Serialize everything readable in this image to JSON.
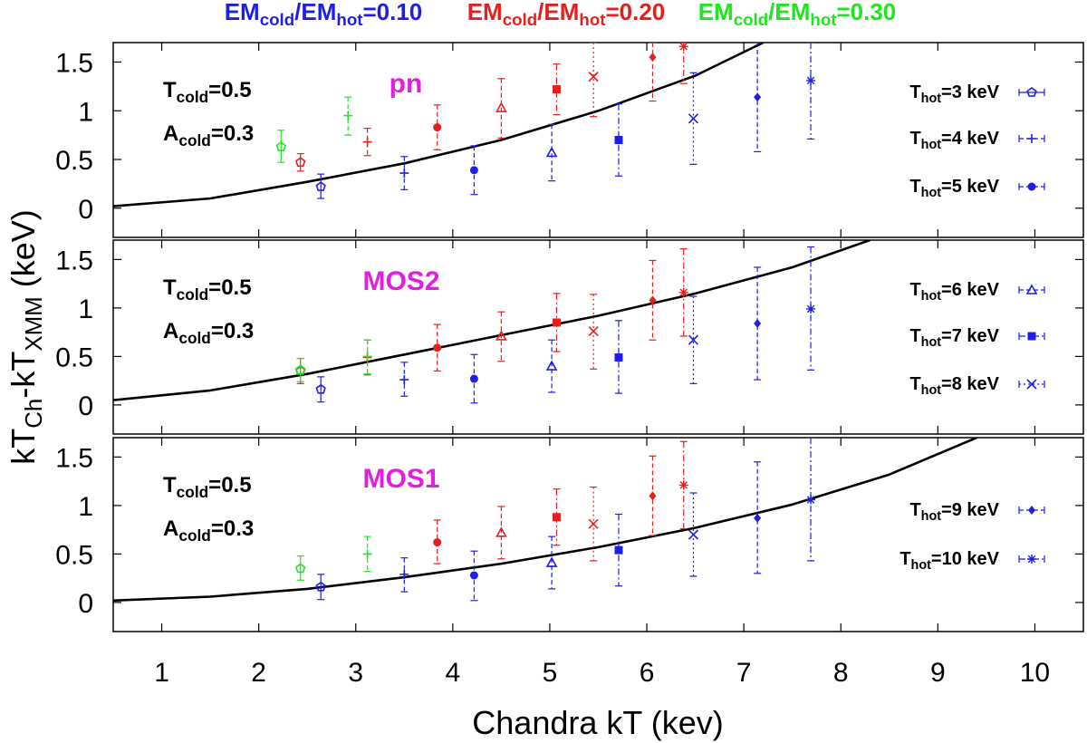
{
  "chart_data": {
    "type": "scatter",
    "xlabel": "Chandra kT (kev)",
    "ylabel": "kT_Ch-kT_XMM (keV)",
    "ylabel_parts": {
      "k1": "kT",
      "s1": "Ch",
      "mid": "-kT",
      "s2": "XMM",
      "tail": " (keV)"
    },
    "xlim": [
      0.5,
      10.5
    ],
    "ylim": [
      -0.3,
      1.7
    ],
    "x_ticks": [
      1,
      2,
      3,
      4,
      5,
      6,
      7,
      8,
      9,
      10
    ],
    "y_ticks": [
      0,
      0.5,
      1,
      1.5
    ],
    "top_legend": [
      {
        "base": "EM",
        "cold": "cold",
        "slash": "/EM",
        "hot": "hot",
        "eq": "=0.10",
        "color": "#1e1ee6"
      },
      {
        "base": "EM",
        "cold": "cold",
        "slash": "/EM",
        "hot": "hot",
        "eq": "=0.20",
        "color": "#e61e1e"
      },
      {
        "base": "EM",
        "cold": "cold",
        "slash": "/EM",
        "hot": "hot",
        "eq": "=0.30",
        "color": "#1ee61e"
      }
    ],
    "annotations": {
      "tcold": {
        "base": "T",
        "sub": "cold",
        "eq": "=0.5"
      },
      "acold": {
        "base": "A",
        "sub": "cold",
        "eq": "=0.3"
      }
    },
    "legend_entries": [
      {
        "base": "T",
        "sub": "hot",
        "eq": "=3 keV",
        "marker": "pentagon-open",
        "style": "solid"
      },
      {
        "base": "T",
        "sub": "hot",
        "eq": "=4 keV",
        "marker": "plus",
        "style": "dash"
      },
      {
        "base": "T",
        "sub": "hot",
        "eq": "=5 keV",
        "marker": "circle",
        "style": "dash"
      },
      {
        "base": "T",
        "sub": "hot",
        "eq": "=6 keV",
        "marker": "triangle-open",
        "style": "dash"
      },
      {
        "base": "T",
        "sub": "hot",
        "eq": "=7 keV",
        "marker": "square",
        "style": "dashdot"
      },
      {
        "base": "T",
        "sub": "hot",
        "eq": "=8 keV",
        "marker": "cross",
        "style": "dot"
      },
      {
        "base": "T",
        "sub": "hot",
        "eq": "=9 keV",
        "marker": "diamond",
        "style": "dash"
      },
      {
        "base": "T",
        "sub": "hot",
        "eq": "=10 keV",
        "marker": "star",
        "style": "dashdot"
      }
    ],
    "marker_order": [
      "pentagon-open",
      "plus",
      "circle",
      "triangle-open",
      "square",
      "cross",
      "diamond",
      "star"
    ],
    "colors": {
      "0.10": "#1e1ee6",
      "0.20": "#e61e1e",
      "0.30": "#1ee61e",
      "title": "#e11ee1",
      "curve": "#000000"
    },
    "panels": [
      {
        "name": "pn",
        "legend": [
          0,
          1,
          2
        ],
        "curve": [
          [
            0.5,
            0.02
          ],
          [
            1.5,
            0.1
          ],
          [
            2.5,
            0.27
          ],
          [
            3.5,
            0.46
          ],
          [
            4.5,
            0.7
          ],
          [
            5.5,
            1.0
          ],
          [
            6.5,
            1.36
          ],
          [
            7.2,
            1.7
          ]
        ],
        "series": [
          {
            "em": "0.10",
            "points": [
              {
                "m": 0,
                "x": 2.64,
                "y": 0.22,
                "lo": 0.1,
                "hi": 0.35
              },
              {
                "m": 1,
                "x": 3.5,
                "y": 0.36,
                "lo": 0.19,
                "hi": 0.53
              },
              {
                "m": 2,
                "x": 4.22,
                "y": 0.39,
                "lo": 0.14,
                "hi": 0.64
              },
              {
                "m": 3,
                "x": 5.02,
                "y": 0.57,
                "lo": 0.28,
                "hi": 0.86
              },
              {
                "m": 4,
                "x": 5.71,
                "y": 0.7,
                "lo": 0.33,
                "hi": 1.07
              },
              {
                "m": 5,
                "x": 6.48,
                "y": 0.92,
                "lo": 0.45,
                "hi": 1.39
              },
              {
                "m": 6,
                "x": 7.14,
                "y": 1.14,
                "lo": 0.58,
                "hi": 1.7
              },
              {
                "m": 7,
                "x": 7.69,
                "y": 1.31,
                "lo": 0.71,
                "hi": 1.7
              }
            ]
          },
          {
            "em": "0.20",
            "points": [
              {
                "m": 0,
                "x": 2.43,
                "y": 0.47,
                "lo": 0.38,
                "hi": 0.56
              },
              {
                "m": 1,
                "x": 3.12,
                "y": 0.68,
                "lo": 0.54,
                "hi": 0.82
              },
              {
                "m": 2,
                "x": 3.84,
                "y": 0.83,
                "lo": 0.6,
                "hi": 1.06
              },
              {
                "m": 3,
                "x": 4.5,
                "y": 1.03,
                "lo": 0.72,
                "hi": 1.33
              },
              {
                "m": 4,
                "x": 5.07,
                "y": 1.22,
                "lo": 0.96,
                "hi": 1.48
              },
              {
                "m": 5,
                "x": 5.45,
                "y": 1.35,
                "lo": 0.94,
                "hi": 1.7
              },
              {
                "m": 6,
                "x": 6.06,
                "y": 1.55,
                "lo": 1.1,
                "hi": 1.7
              },
              {
                "m": 7,
                "x": 6.38,
                "y": 1.66,
                "lo": 1.28,
                "hi": 1.7
              }
            ]
          },
          {
            "em": "0.30",
            "points": [
              {
                "m": 0,
                "x": 2.23,
                "y": 0.63,
                "lo": 0.47,
                "hi": 0.8
              },
              {
                "m": 1,
                "x": 2.92,
                "y": 0.95,
                "lo": 0.75,
                "hi": 1.14
              }
            ]
          }
        ]
      },
      {
        "name": "MOS2",
        "legend": [
          3,
          4,
          5
        ],
        "curve": [
          [
            0.5,
            0.05
          ],
          [
            1.5,
            0.15
          ],
          [
            2.5,
            0.32
          ],
          [
            3.5,
            0.52
          ],
          [
            4.5,
            0.72
          ],
          [
            5.5,
            0.92
          ],
          [
            6.5,
            1.15
          ],
          [
            7.5,
            1.42
          ],
          [
            8.3,
            1.7
          ]
        ],
        "series": [
          {
            "em": "0.10",
            "points": [
              {
                "m": 0,
                "x": 2.64,
                "y": 0.16,
                "lo": 0.03,
                "hi": 0.29
              },
              {
                "m": 1,
                "x": 3.5,
                "y": 0.26,
                "lo": 0.09,
                "hi": 0.44
              },
              {
                "m": 2,
                "x": 4.22,
                "y": 0.27,
                "lo": 0.02,
                "hi": 0.52
              },
              {
                "m": 3,
                "x": 5.02,
                "y": 0.4,
                "lo": 0.13,
                "hi": 0.67
              },
              {
                "m": 4,
                "x": 5.71,
                "y": 0.49,
                "lo": 0.12,
                "hi": 0.87
              },
              {
                "m": 5,
                "x": 6.48,
                "y": 0.67,
                "lo": 0.22,
                "hi": 1.12
              },
              {
                "m": 6,
                "x": 7.14,
                "y": 0.84,
                "lo": 0.26,
                "hi": 1.42
              },
              {
                "m": 7,
                "x": 7.69,
                "y": 0.99,
                "lo": 0.36,
                "hi": 1.63
              }
            ]
          },
          {
            "em": "0.20",
            "points": [
              {
                "m": 0,
                "x": 2.43,
                "y": 0.35,
                "lo": 0.22,
                "hi": 0.48
              },
              {
                "m": 1,
                "x": 3.12,
                "y": 0.49,
                "lo": 0.31,
                "hi": 0.67
              },
              {
                "m": 2,
                "x": 3.84,
                "y": 0.59,
                "lo": 0.35,
                "hi": 0.83
              },
              {
                "m": 3,
                "x": 4.5,
                "y": 0.71,
                "lo": 0.45,
                "hi": 0.96
              },
              {
                "m": 4,
                "x": 5.07,
                "y": 0.85,
                "lo": 0.55,
                "hi": 1.15
              },
              {
                "m": 5,
                "x": 5.45,
                "y": 0.76,
                "lo": 0.37,
                "hi": 1.14
              },
              {
                "m": 6,
                "x": 6.06,
                "y": 1.08,
                "lo": 0.67,
                "hi": 1.49
              },
              {
                "m": 7,
                "x": 6.38,
                "y": 1.16,
                "lo": 0.71,
                "hi": 1.61
              }
            ]
          },
          {
            "em": "0.30",
            "points": [
              {
                "m": 0,
                "x": 2.43,
                "y": 0.36,
                "lo": 0.24,
                "hi": 0.48
              },
              {
                "m": 1,
                "x": 3.12,
                "y": 0.5,
                "lo": 0.32,
                "hi": 0.67
              }
            ]
          }
        ]
      },
      {
        "name": "MOS1",
        "legend": [
          6,
          7
        ],
        "curve": [
          [
            0.5,
            0.02
          ],
          [
            1.5,
            0.06
          ],
          [
            2.5,
            0.14
          ],
          [
            3.5,
            0.26
          ],
          [
            4.5,
            0.4
          ],
          [
            5.5,
            0.57
          ],
          [
            6.5,
            0.77
          ],
          [
            7.5,
            1.01
          ],
          [
            8.5,
            1.32
          ],
          [
            9.4,
            1.7
          ]
        ],
        "series": [
          {
            "em": "0.10",
            "points": [
              {
                "m": 0,
                "x": 2.64,
                "y": 0.16,
                "lo": 0.03,
                "hi": 0.29
              },
              {
                "m": 1,
                "x": 3.5,
                "y": 0.29,
                "lo": 0.11,
                "hi": 0.46
              },
              {
                "m": 2,
                "x": 4.22,
                "y": 0.28,
                "lo": 0.02,
                "hi": 0.53
              },
              {
                "m": 3,
                "x": 5.02,
                "y": 0.41,
                "lo": 0.14,
                "hi": 0.68
              },
              {
                "m": 4,
                "x": 5.71,
                "y": 0.54,
                "lo": 0.17,
                "hi": 0.91
              },
              {
                "m": 5,
                "x": 6.48,
                "y": 0.7,
                "lo": 0.27,
                "hi": 1.13
              },
              {
                "m": 6,
                "x": 7.14,
                "y": 0.87,
                "lo": 0.3,
                "hi": 1.45
              },
              {
                "m": 7,
                "x": 7.69,
                "y": 1.06,
                "lo": 0.43,
                "hi": 1.7
              }
            ]
          },
          {
            "em": "0.20",
            "points": [
              {
                "m": 2,
                "x": 3.84,
                "y": 0.62,
                "lo": 0.4,
                "hi": 0.85
              },
              {
                "m": 3,
                "x": 4.5,
                "y": 0.72,
                "lo": 0.45,
                "hi": 0.99
              },
              {
                "m": 4,
                "x": 5.07,
                "y": 0.88,
                "lo": 0.59,
                "hi": 1.17
              },
              {
                "m": 5,
                "x": 5.45,
                "y": 0.81,
                "lo": 0.43,
                "hi": 1.19
              },
              {
                "m": 6,
                "x": 6.06,
                "y": 1.1,
                "lo": 0.69,
                "hi": 1.51
              },
              {
                "m": 7,
                "x": 6.38,
                "y": 1.21,
                "lo": 0.76,
                "hi": 1.66
              }
            ]
          },
          {
            "em": "0.30",
            "points": [
              {
                "m": 0,
                "x": 2.43,
                "y": 0.35,
                "lo": 0.23,
                "hi": 0.48
              },
              {
                "m": 1,
                "x": 3.12,
                "y": 0.5,
                "lo": 0.32,
                "hi": 0.68
              }
            ]
          }
        ]
      }
    ]
  }
}
